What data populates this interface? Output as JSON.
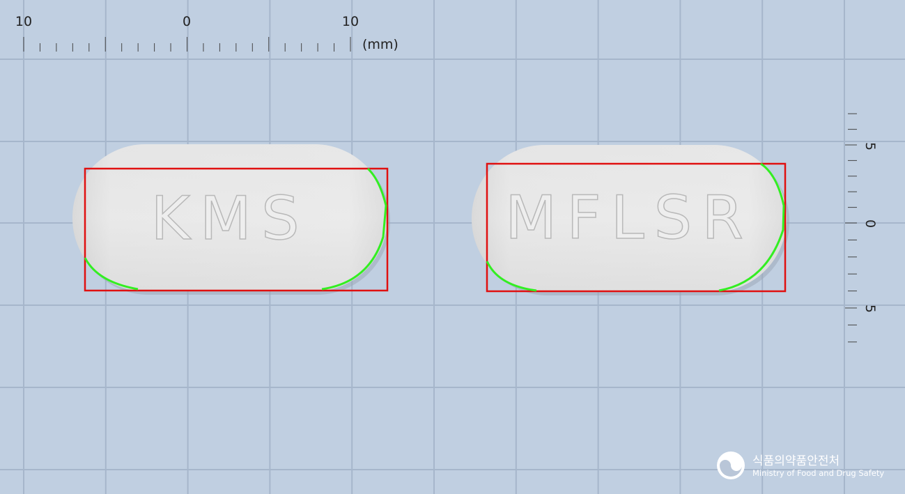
{
  "ruler_top": {
    "labels": [
      "10",
      "0",
      "10"
    ],
    "unit": "(mm)"
  },
  "ruler_right": {
    "labels": [
      "5",
      "0",
      "5"
    ]
  },
  "pills": [
    {
      "imprint": "KMS"
    },
    {
      "imprint": "MFLSR"
    }
  ],
  "logo": {
    "korean": "식품의약품안전처",
    "english": "Ministry of Food and Drug Safety"
  }
}
